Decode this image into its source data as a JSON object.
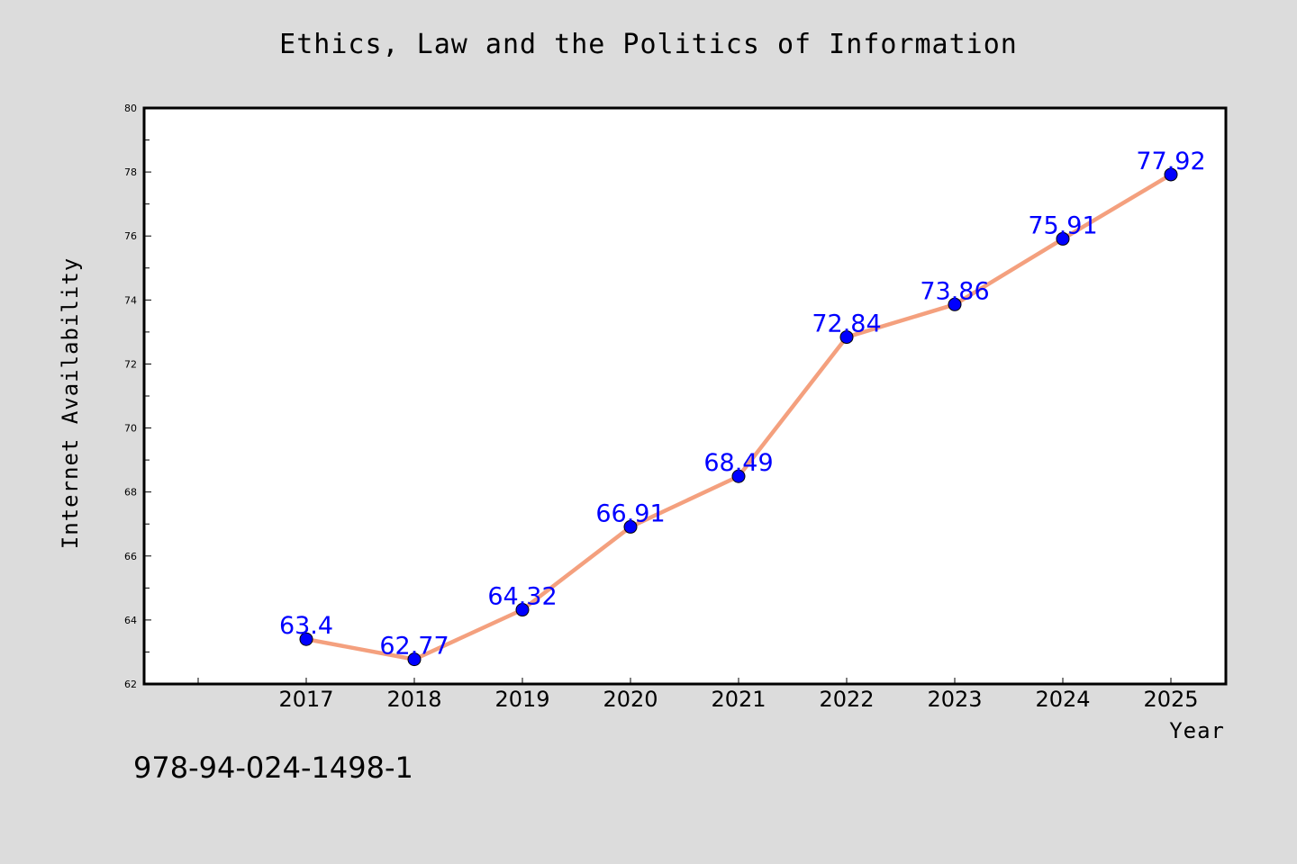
{
  "chart_data": {
    "type": "line",
    "title": "Ethics, Law and the Politics of Information",
    "xlabel": "Year",
    "ylabel": "Internet Availability",
    "categories": [
      "2017",
      "2018",
      "2019",
      "2020",
      "2021",
      "2022",
      "2023",
      "2024",
      "2025"
    ],
    "values": [
      63.4,
      62.77,
      64.32,
      66.91,
      68.49,
      72.84,
      73.86,
      75.91,
      77.92
    ],
    "data_labels": [
      "63.4",
      "62.77",
      "64.32",
      "66.91",
      "68.49",
      "72.84",
      "73.86",
      "75.91",
      "77.92"
    ],
    "ylim": [
      62,
      80
    ],
    "yticks": [
      62,
      64,
      66,
      68,
      70,
      72,
      74,
      76,
      78,
      80
    ],
    "grid": false,
    "legend": "none",
    "line_color": "#f4a07e",
    "marker_color": "#0000ff",
    "label_color": "#0000ff",
    "background_color": "#dcdcdc",
    "plot_background_color": "#ffffff"
  },
  "footer": {
    "isbn": "978-94-024-1498-1"
  }
}
